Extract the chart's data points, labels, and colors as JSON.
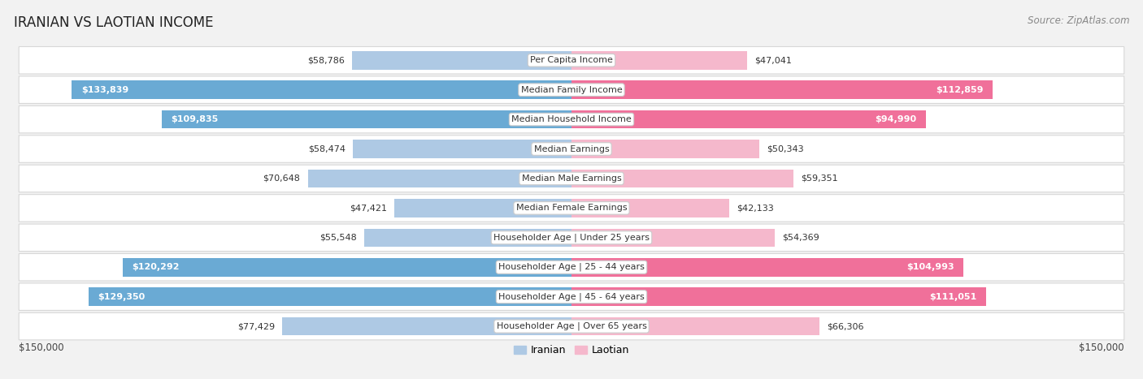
{
  "title": "IRANIAN VS LAOTIAN INCOME",
  "source": "Source: ZipAtlas.com",
  "categories": [
    "Per Capita Income",
    "Median Family Income",
    "Median Household Income",
    "Median Earnings",
    "Median Male Earnings",
    "Median Female Earnings",
    "Householder Age | Under 25 years",
    "Householder Age | 25 - 44 years",
    "Householder Age | 45 - 64 years",
    "Householder Age | Over 65 years"
  ],
  "iranian_values": [
    58786,
    133839,
    109835,
    58474,
    70648,
    47421,
    55548,
    120292,
    129350,
    77429
  ],
  "laotian_values": [
    47041,
    112859,
    94990,
    50343,
    59351,
    42133,
    54369,
    104993,
    111051,
    66306
  ],
  "iranian_labels": [
    "$58,786",
    "$133,839",
    "$109,835",
    "$58,474",
    "$70,648",
    "$47,421",
    "$55,548",
    "$120,292",
    "$129,350",
    "$77,429"
  ],
  "laotian_labels": [
    "$47,041",
    "$112,859",
    "$94,990",
    "$50,343",
    "$59,351",
    "$42,133",
    "$54,369",
    "$104,993",
    "$111,051",
    "$66,306"
  ],
  "iranian_color_light": "#aec9e4",
  "iranian_color_dark": "#6aaad4",
  "laotian_color_light": "#f5b8cc",
  "laotian_color_dark": "#f0709a",
  "iranian_threshold": 80000,
  "laotian_threshold": 80000,
  "max_value": 150000,
  "x_label_left": "$150,000",
  "x_label_right": "$150,000",
  "bar_height": 0.62,
  "bg_color": "#f2f2f2",
  "row_bg_color": "#ffffff",
  "row_border_color": "#d8d8d8",
  "title_fontsize": 12,
  "source_fontsize": 8.5,
  "label_fontsize": 8,
  "category_fontsize": 8,
  "legend_fontsize": 9
}
